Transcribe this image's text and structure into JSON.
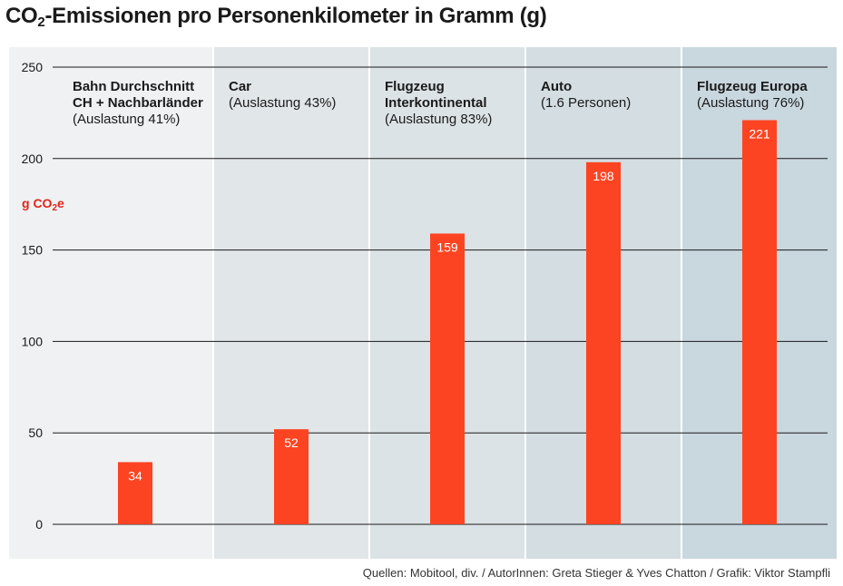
{
  "title_prefix": "CO",
  "title_sub": "2",
  "title_suffix": "-Emissionen pro Personenkilometer in Gramm (g)",
  "unit_label_prefix": "g CO",
  "unit_label_sub": "2",
  "unit_label_suffix": "e",
  "source": "Quellen: Mobitool, div. / AutorInnen: Greta Stieger & Yves Chatton / Grafik: Viktor Stampfli",
  "colors": {
    "bar": "#fc4422",
    "accent_text": "#e2241c",
    "panel_bg": [
      "#eff1f2",
      "#e1e6e8",
      "#dce3e6",
      "#d3dde2",
      "#c9d7df"
    ]
  },
  "chart_data": {
    "type": "bar",
    "categories": [
      {
        "name": "Bahn Durchschnitt",
        "name2": "CH + Nachbarländer",
        "detail": "(Auslastung 41%)"
      },
      {
        "name": "Car",
        "name2": "",
        "detail": "(Auslastung 43%)"
      },
      {
        "name": "Flugzeug",
        "name2": "Interkontinental",
        "detail": "(Auslastung 83%)"
      },
      {
        "name": "Auto",
        "name2": "",
        "detail": "(1.6 Personen)"
      },
      {
        "name": "Flugzeug Europa",
        "name2": "",
        "detail": "(Auslastung 76%)"
      }
    ],
    "values": [
      34,
      52,
      159,
      198,
      221
    ],
    "ylim": [
      0,
      250
    ],
    "yticks": [
      0,
      50,
      100,
      150,
      200,
      250
    ],
    "grid": true
  }
}
